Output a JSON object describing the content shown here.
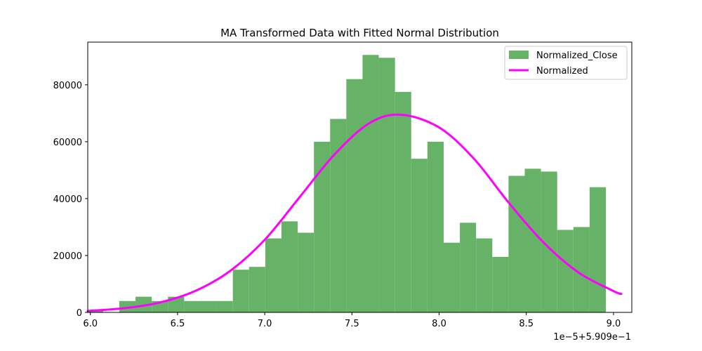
{
  "chart_data": {
    "type": "bar",
    "title": "MA Transformed Data with Fitted Normal Distribution",
    "xlabel": "",
    "ylabel": "",
    "x_offset_text": "1e−5+5.909e−1",
    "xlim": [
      5.985,
      9.105
    ],
    "ylim": [
      0,
      95000
    ],
    "x_ticks": [
      6.0,
      6.5,
      7.0,
      7.5,
      8.0,
      8.5,
      9.0
    ],
    "x_tick_labels": [
      "6.0",
      "6.5",
      "7.0",
      "7.5",
      "8.0",
      "8.5",
      "9.0"
    ],
    "y_ticks": [
      0,
      20000,
      40000,
      60000,
      80000
    ],
    "y_tick_labels": [
      "0",
      "20000",
      "40000",
      "60000",
      "80000"
    ],
    "legend_position": "top-right",
    "histogram": {
      "name": "Normalized_Close",
      "color": "#66b266",
      "bins": [
        {
          "x0": 5.98,
          "x1": 6.073,
          "value": 600
        },
        {
          "x0": 6.073,
          "x1": 6.166,
          "value": 0
        },
        {
          "x0": 6.166,
          "x1": 6.259,
          "value": 4000
        },
        {
          "x0": 6.259,
          "x1": 6.352,
          "value": 5500
        },
        {
          "x0": 6.352,
          "x1": 6.445,
          "value": 4000
        },
        {
          "x0": 6.445,
          "x1": 6.538,
          "value": 5500
        },
        {
          "x0": 6.538,
          "x1": 6.631,
          "value": 4000
        },
        {
          "x0": 6.631,
          "x1": 6.724,
          "value": 4000
        },
        {
          "x0": 6.724,
          "x1": 6.817,
          "value": 4000
        },
        {
          "x0": 6.817,
          "x1": 6.91,
          "value": 15000
        },
        {
          "x0": 6.91,
          "x1": 7.003,
          "value": 16000
        },
        {
          "x0": 7.003,
          "x1": 7.096,
          "value": 26000
        },
        {
          "x0": 7.096,
          "x1": 7.189,
          "value": 32000
        },
        {
          "x0": 7.189,
          "x1": 7.282,
          "value": 28000
        },
        {
          "x0": 7.282,
          "x1": 7.375,
          "value": 60000
        },
        {
          "x0": 7.375,
          "x1": 7.468,
          "value": 68000
        },
        {
          "x0": 7.468,
          "x1": 7.561,
          "value": 82000
        },
        {
          "x0": 7.561,
          "x1": 7.654,
          "value": 90500
        },
        {
          "x0": 7.654,
          "x1": 7.747,
          "value": 89500
        },
        {
          "x0": 7.747,
          "x1": 7.84,
          "value": 77500
        },
        {
          "x0": 7.84,
          "x1": 7.933,
          "value": 54000
        },
        {
          "x0": 7.933,
          "x1": 8.026,
          "value": 60000
        },
        {
          "x0": 8.026,
          "x1": 8.119,
          "value": 24500
        },
        {
          "x0": 8.119,
          "x1": 8.212,
          "value": 31500
        },
        {
          "x0": 8.212,
          "x1": 8.305,
          "value": 26000
        },
        {
          "x0": 8.305,
          "x1": 8.398,
          "value": 19500
        },
        {
          "x0": 8.398,
          "x1": 8.491,
          "value": 48000
        },
        {
          "x0": 8.491,
          "x1": 8.584,
          "value": 50500
        },
        {
          "x0": 8.584,
          "x1": 8.677,
          "value": 49500
        },
        {
          "x0": 8.677,
          "x1": 8.77,
          "value": 29000
        },
        {
          "x0": 8.77,
          "x1": 8.863,
          "value": 30000
        },
        {
          "x0": 8.863,
          "x1": 8.956,
          "value": 44000
        }
      ]
    },
    "curve": {
      "name": "Normalized",
      "color": "#ff00ff",
      "type": "line",
      "x": [
        5.985,
        6.2,
        6.4,
        6.6,
        6.8,
        7.0,
        7.2,
        7.4,
        7.6,
        7.78,
        8.0,
        8.2,
        8.4,
        8.6,
        8.8,
        9.0,
        9.045
      ],
      "values": [
        500,
        1500,
        3500,
        7500,
        14500,
        25500,
        40500,
        55500,
        66500,
        69500,
        65000,
        54000,
        38500,
        24500,
        14000,
        7500,
        6500
      ]
    }
  }
}
